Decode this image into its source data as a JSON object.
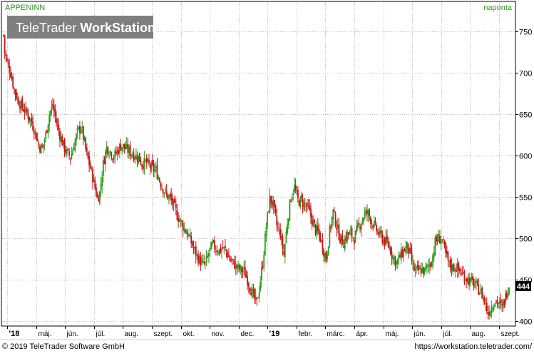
{
  "header": {
    "symbol": "APPENINN",
    "interval": "naponta",
    "brand_light": "TeleTrader ",
    "brand_bold": "WorkStation"
  },
  "footer": {
    "copyright": "© 2019 TeleTrader Software GmbH",
    "url": "https://workstation.teletrader.com/"
  },
  "colors": {
    "up": "#2e9a1e",
    "down": "#c81414",
    "grid": "#b9b9b9",
    "header_text": "#2e9a1e",
    "price_tag_bg": "#000000",
    "brand_bg": "#7f7f7f"
  },
  "chart_data": {
    "type": "candlestick",
    "title": "APPENINN",
    "interval": "naponta",
    "y_ticks": [
      400,
      450,
      500,
      550,
      600,
      650,
      700,
      750
    ],
    "ylim": [
      395,
      785
    ],
    "x_labels": [
      "'18",
      "máj.",
      "jún.",
      "júl.",
      "aug.",
      "szept.",
      "okt.",
      "nov.",
      "dec.",
      "'19",
      "febr.",
      "márc.",
      "ápr.",
      "máj.",
      "jún.",
      "júl.",
      "aug.",
      "szept."
    ],
    "last_price": "444",
    "grid": true,
    "price_anchors": [
      [
        0,
        745
      ],
      [
        1,
        725
      ],
      [
        3,
        712
      ],
      [
        6,
        700
      ],
      [
        9,
        680
      ],
      [
        12,
        668
      ],
      [
        15,
        660
      ],
      [
        18,
        655
      ],
      [
        21,
        648
      ],
      [
        24,
        640
      ],
      [
        27,
        628
      ],
      [
        30,
        612
      ],
      [
        33,
        608
      ],
      [
        36,
        625
      ],
      [
        39,
        650
      ],
      [
        42,
        660
      ],
      [
        45,
        640
      ],
      [
        48,
        625
      ],
      [
        51,
        612
      ],
      [
        54,
        603
      ],
      [
        57,
        598
      ],
      [
        60,
        612
      ],
      [
        63,
        628
      ],
      [
        66,
        635
      ],
      [
        68,
        622
      ],
      [
        71,
        600
      ],
      [
        74,
        585
      ],
      [
        77,
        568
      ],
      [
        80,
        548
      ],
      [
        82,
        555
      ],
      [
        85,
        590
      ],
      [
        88,
        610
      ],
      [
        91,
        605
      ],
      [
        94,
        598
      ],
      [
        97,
        605
      ],
      [
        100,
        612
      ],
      [
        103,
        610
      ],
      [
        106,
        606
      ],
      [
        109,
        603
      ],
      [
        112,
        600
      ],
      [
        115,
        598
      ],
      [
        118,
        590
      ],
      [
        121,
        592
      ],
      [
        124,
        588
      ],
      [
        127,
        584
      ],
      [
        130,
        582
      ],
      [
        133,
        570
      ],
      [
        136,
        560
      ],
      [
        139,
        552
      ],
      [
        142,
        548
      ],
      [
        145,
        540
      ],
      [
        148,
        528
      ],
      [
        151,
        520
      ],
      [
        154,
        512
      ],
      [
        157,
        505
      ],
      [
        160,
        495
      ],
      [
        163,
        484
      ],
      [
        166,
        476
      ],
      [
        169,
        470
      ],
      [
        172,
        468
      ],
      [
        175,
        482
      ],
      [
        178,
        492
      ],
      [
        181,
        488
      ],
      [
        184,
        485
      ],
      [
        187,
        488
      ],
      [
        190,
        484
      ],
      [
        193,
        474
      ],
      [
        196,
        470
      ],
      [
        199,
        465
      ],
      [
        202,
        462
      ],
      [
        205,
        460
      ],
      [
        208,
        450
      ],
      [
        211,
        438
      ],
      [
        214,
        426
      ],
      [
        216,
        422
      ],
      [
        218,
        440
      ],
      [
        221,
        470
      ],
      [
        224,
        515
      ],
      [
        227,
        548
      ],
      [
        230,
        540
      ],
      [
        233,
        515
      ],
      [
        236,
        505
      ],
      [
        239,
        480
      ],
      [
        242,
        520
      ],
      [
        245,
        550
      ],
      [
        248,
        562
      ],
      [
        251,
        545
      ],
      [
        254,
        545
      ],
      [
        257,
        540
      ],
      [
        260,
        535
      ],
      [
        263,
        522
      ],
      [
        266,
        510
      ],
      [
        269,
        505
      ],
      [
        272,
        490
      ],
      [
        275,
        475
      ],
      [
        278,
        508
      ],
      [
        281,
        532
      ],
      [
        284,
        515
      ],
      [
        287,
        500
      ],
      [
        290,
        495
      ],
      [
        293,
        505
      ],
      [
        296,
        505
      ],
      [
        299,
        500
      ],
      [
        302,
        512
      ],
      [
        305,
        520
      ],
      [
        308,
        530
      ],
      [
        311,
        530
      ],
      [
        314,
        520
      ],
      [
        317,
        512
      ],
      [
        320,
        505
      ],
      [
        323,
        500
      ],
      [
        326,
        495
      ],
      [
        329,
        490
      ],
      [
        332,
        478
      ],
      [
        335,
        470
      ],
      [
        338,
        478
      ],
      [
        341,
        485
      ],
      [
        344,
        490
      ],
      [
        347,
        478
      ],
      [
        350,
        462
      ],
      [
        353,
        460
      ],
      [
        356,
        462
      ],
      [
        359,
        460
      ],
      [
        362,
        467
      ],
      [
        365,
        472
      ],
      [
        368,
        495
      ],
      [
        371,
        500
      ],
      [
        374,
        498
      ],
      [
        377,
        480
      ],
      [
        380,
        468
      ],
      [
        383,
        465
      ],
      [
        386,
        465
      ],
      [
        389,
        460
      ],
      [
        392,
        455
      ],
      [
        395,
        452
      ],
      [
        398,
        448
      ],
      [
        401,
        445
      ],
      [
        404,
        440
      ],
      [
        407,
        435
      ],
      [
        410,
        425
      ],
      [
        413,
        410
      ],
      [
        416,
        418
      ],
      [
        419,
        425
      ],
      [
        422,
        422
      ],
      [
        425,
        415
      ],
      [
        428,
        430
      ],
      [
        431,
        444
      ]
    ]
  }
}
